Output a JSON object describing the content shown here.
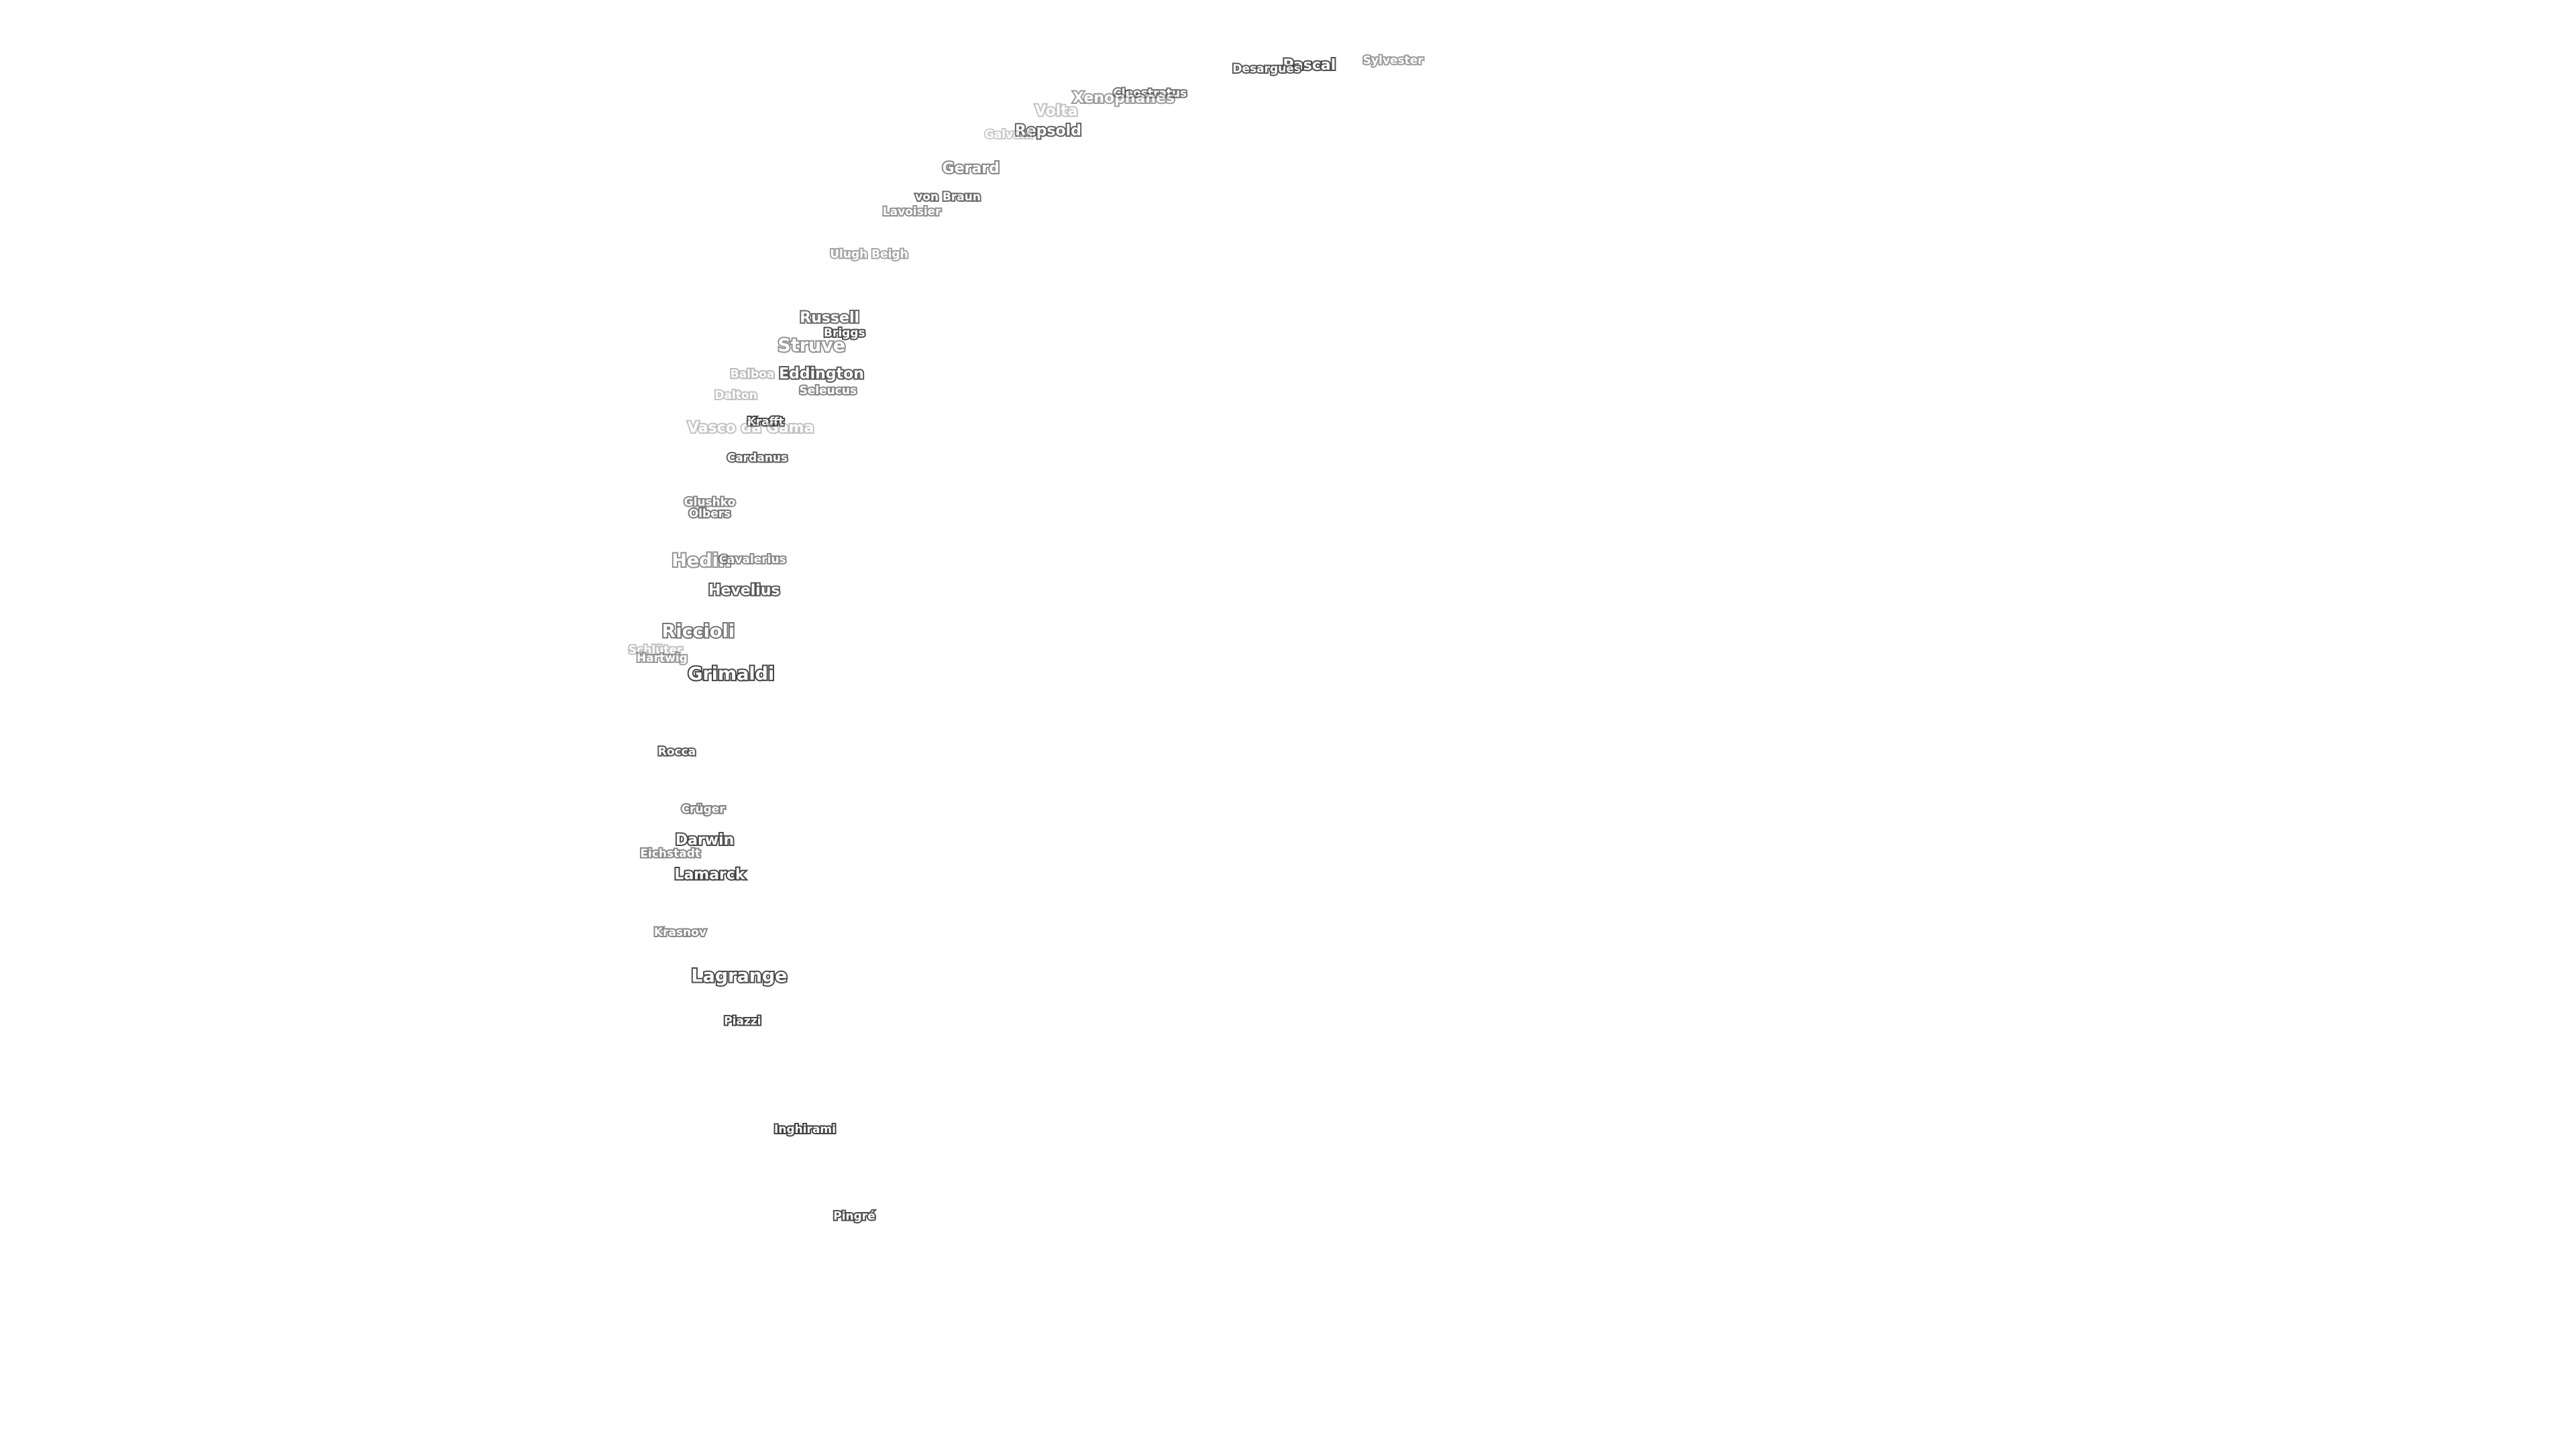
{
  "labels": [
    "Sylvester",
    "Pascal",
    "Desargues",
    "Cleostratus",
    "Xenophanes",
    "Volta",
    "Repsold",
    "Galvani",
    "Gerard",
    "von Braun",
    "Lavoisier",
    "Ulugh Beigh",
    "Russell",
    "Briggs",
    "Struve",
    "Eddington",
    "Balboa",
    "Seleucus",
    "Dalton",
    "Krafft",
    "Vasco da Gama",
    "Cardanus",
    "Glushko",
    "Olbers",
    "Hedin",
    "Cavalerius",
    "Hevelius",
    "Riccioli",
    "Schlüter",
    "Hartwig",
    "Grimaldi",
    "Rocca",
    "Crüger",
    "Darwin",
    "Eichstadt",
    "Lamarck",
    "Krasnov",
    "Lagrange",
    "Piazzi",
    "Inghirami",
    "Pingré"
  ]
}
